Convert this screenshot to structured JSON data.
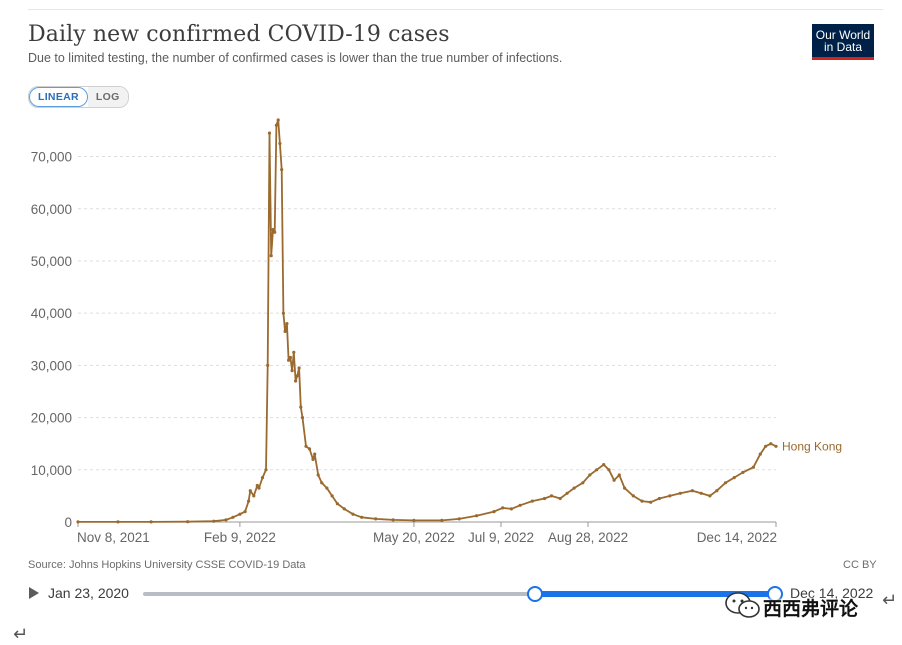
{
  "header": {
    "title": "Daily new confirmed COVID-19 cases",
    "subtitle": "Due to limited testing, the number of confirmed cases is lower than the true number of infections.",
    "logo_line1": "Our World",
    "logo_line2": "in Data"
  },
  "scale_toggle": {
    "linear_label": "LINEAR",
    "log_label": "LOG",
    "selected": "LINEAR"
  },
  "footer": {
    "source": "Source: Johns Hopkins University CSSE COVID-19 Data",
    "license": "CC BY"
  },
  "timeline": {
    "start_label": "Jan 23, 2020",
    "end_label": "Dec 14, 2022"
  },
  "watermark": {
    "text": "西西弗评论"
  },
  "return_glyph": "↵",
  "colors": {
    "series": "#9a6a2f",
    "axis": "#666666",
    "grid": "#dddddd",
    "accent": "#1a73e8",
    "logo_bg": "#002147",
    "logo_bar": "#ce261e"
  },
  "chart_data": {
    "type": "line",
    "title": "Daily new confirmed COVID-19 cases",
    "ylim": [
      0,
      77000
    ],
    "yticks": [
      0,
      10000,
      20000,
      30000,
      40000,
      50000,
      60000,
      70000
    ],
    "ytick_labels": [
      "0",
      "10,000",
      "20,000",
      "30,000",
      "40,000",
      "50,000",
      "60,000",
      "70,000"
    ],
    "xlim": [
      "2021-11-08",
      "2022-12-14"
    ],
    "xticks": [
      "2021-11-08",
      "2022-02-09",
      "2022-05-20",
      "2022-07-09",
      "2022-08-28",
      "2022-12-14"
    ],
    "xtick_labels": [
      "Nov 8, 2021",
      "Feb 9, 2022",
      "May 20, 2022",
      "Jul 9, 2022",
      "Aug 28, 2022",
      "Dec 14, 2022"
    ],
    "grid": "horizontal",
    "series": [
      {
        "name": "Hong Kong",
        "points": [
          [
            "2021-11-08",
            10
          ],
          [
            "2021-12-01",
            15
          ],
          [
            "2021-12-20",
            20
          ],
          [
            "2022-01-10",
            50
          ],
          [
            "2022-01-25",
            150
          ],
          [
            "2022-02-01",
            400
          ],
          [
            "2022-02-05",
            900
          ],
          [
            "2022-02-09",
            1500
          ],
          [
            "2022-02-12",
            2000
          ],
          [
            "2022-02-14",
            4000
          ],
          [
            "2022-02-15",
            6000
          ],
          [
            "2022-02-17",
            5000
          ],
          [
            "2022-02-19",
            7000
          ],
          [
            "2022-02-20",
            6500
          ],
          [
            "2022-02-22",
            8500
          ],
          [
            "2022-02-24",
            10000
          ],
          [
            "2022-02-25",
            30000
          ],
          [
            "2022-02-26",
            74500
          ],
          [
            "2022-02-27",
            51000
          ],
          [
            "2022-02-28",
            56000
          ],
          [
            "2022-03-01",
            55500
          ],
          [
            "2022-03-02",
            76000
          ],
          [
            "2022-03-03",
            77000
          ],
          [
            "2022-03-04",
            72500
          ],
          [
            "2022-03-05",
            67500
          ],
          [
            "2022-03-06",
            40000
          ],
          [
            "2022-03-07",
            36500
          ],
          [
            "2022-03-08",
            38000
          ],
          [
            "2022-03-09",
            31000
          ],
          [
            "2022-03-10",
            31500
          ],
          [
            "2022-03-11",
            29000
          ],
          [
            "2022-03-12",
            32500
          ],
          [
            "2022-03-13",
            27000
          ],
          [
            "2022-03-14",
            28000
          ],
          [
            "2022-03-15",
            29500
          ],
          [
            "2022-03-16",
            22000
          ],
          [
            "2022-03-17",
            20000
          ],
          [
            "2022-03-19",
            14500
          ],
          [
            "2022-03-21",
            14000
          ],
          [
            "2022-03-23",
            12000
          ],
          [
            "2022-03-24",
            13000
          ],
          [
            "2022-03-26",
            9000
          ],
          [
            "2022-03-28",
            7500
          ],
          [
            "2022-03-31",
            6500
          ],
          [
            "2022-04-03",
            5000
          ],
          [
            "2022-04-06",
            3500
          ],
          [
            "2022-04-10",
            2500
          ],
          [
            "2022-04-15",
            1500
          ],
          [
            "2022-04-20",
            900
          ],
          [
            "2022-04-28",
            600
          ],
          [
            "2022-05-08",
            400
          ],
          [
            "2022-05-20",
            300
          ],
          [
            "2022-06-05",
            300
          ],
          [
            "2022-06-15",
            600
          ],
          [
            "2022-06-25",
            1200
          ],
          [
            "2022-07-05",
            2000
          ],
          [
            "2022-07-10",
            2700
          ],
          [
            "2022-07-15",
            2500
          ],
          [
            "2022-07-20",
            3200
          ],
          [
            "2022-07-27",
            4000
          ],
          [
            "2022-08-03",
            4500
          ],
          [
            "2022-08-07",
            5000
          ],
          [
            "2022-08-12",
            4500
          ],
          [
            "2022-08-16",
            5500
          ],
          [
            "2022-08-20",
            6500
          ],
          [
            "2022-08-25",
            7500
          ],
          [
            "2022-08-29",
            9000
          ],
          [
            "2022-09-02",
            10000
          ],
          [
            "2022-09-06",
            11000
          ],
          [
            "2022-09-09",
            10000
          ],
          [
            "2022-09-12",
            8000
          ],
          [
            "2022-09-15",
            9000
          ],
          [
            "2022-09-18",
            6500
          ],
          [
            "2022-09-23",
            5000
          ],
          [
            "2022-09-28",
            4000
          ],
          [
            "2022-10-03",
            3800
          ],
          [
            "2022-10-08",
            4500
          ],
          [
            "2022-10-14",
            5000
          ],
          [
            "2022-10-20",
            5500
          ],
          [
            "2022-10-27",
            6000
          ],
          [
            "2022-11-01",
            5500
          ],
          [
            "2022-11-06",
            5000
          ],
          [
            "2022-11-10",
            6000
          ],
          [
            "2022-11-15",
            7500
          ],
          [
            "2022-11-20",
            8500
          ],
          [
            "2022-11-25",
            9500
          ],
          [
            "2022-12-01",
            10500
          ],
          [
            "2022-12-05",
            13000
          ],
          [
            "2022-12-08",
            14500
          ],
          [
            "2022-12-11",
            15000
          ],
          [
            "2022-12-14",
            14500
          ]
        ]
      }
    ]
  }
}
